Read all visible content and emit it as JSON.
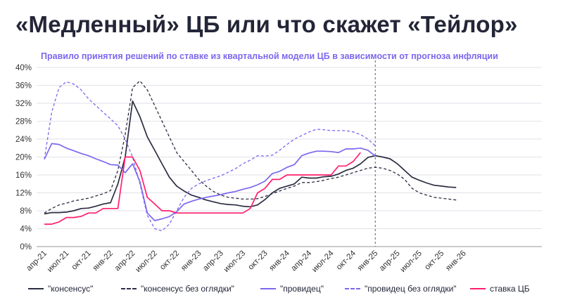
{
  "title": "«Медленный» ЦБ или что скажет «Тейлор»",
  "subtitle": "Правило принятия решений по ставке из квартальной модели ЦБ в зависимости от прогноза инфляции",
  "chart_data": {
    "type": "line",
    "x_categories": [
      "апр-21",
      "июл-21",
      "окт-21",
      "янв-22",
      "апр-22",
      "июл-22",
      "окт-22",
      "янв-23",
      "апр-23",
      "июл-23",
      "окт-23",
      "янв-24",
      "апр-24",
      "июл-24",
      "окт-24",
      "янв-25",
      "апр-25",
      "июл-25",
      "окт-25",
      "янв-26"
    ],
    "y_ticks": [
      "0%",
      "4%",
      "8%",
      "12%",
      "16%",
      "20%",
      "24%",
      "28%",
      "32%",
      "36%",
      "40%"
    ],
    "ylim": [
      0,
      40
    ],
    "grid": "horizontal",
    "legend_position": "bottom",
    "forecast_divider_month": 45,
    "series": [
      {
        "name": "\"консенсус\"",
        "color": "#2b2d42",
        "style": "solid",
        "points": [
          [
            0,
            7.3
          ],
          [
            1,
            7.6
          ],
          [
            2,
            7.6
          ],
          [
            3,
            7.7
          ],
          [
            4,
            8
          ],
          [
            5,
            8.5
          ],
          [
            6,
            8.6
          ],
          [
            7,
            9
          ],
          [
            8,
            9.5
          ],
          [
            9,
            9.8
          ],
          [
            10,
            14
          ],
          [
            11,
            20
          ],
          [
            12,
            32.5
          ],
          [
            13,
            29
          ],
          [
            14,
            24.5
          ],
          [
            15,
            21.5
          ],
          [
            16,
            18.5
          ],
          [
            17,
            15.5
          ],
          [
            18,
            13.5
          ],
          [
            19,
            12.4
          ],
          [
            20,
            11.5
          ],
          [
            21,
            11
          ],
          [
            22,
            10.4
          ],
          [
            23,
            10
          ],
          [
            24,
            9.6
          ],
          [
            25,
            9.4
          ],
          [
            26,
            9.3
          ],
          [
            27,
            9
          ],
          [
            28,
            8.9
          ],
          [
            29,
            9.3
          ],
          [
            30,
            10.5
          ],
          [
            31,
            12
          ],
          [
            32,
            13
          ],
          [
            33,
            13.5
          ],
          [
            34,
            14
          ],
          [
            35,
            15.5
          ],
          [
            36,
            15.3
          ],
          [
            37,
            15.3
          ],
          [
            38,
            15.6
          ],
          [
            39,
            15.7
          ],
          [
            40,
            16.2
          ],
          [
            41,
            17
          ],
          [
            42,
            17.5
          ],
          [
            43,
            18.5
          ],
          [
            44,
            19.9
          ],
          [
            45,
            20.3
          ],
          [
            46,
            20
          ],
          [
            47,
            19.6
          ],
          [
            48,
            18.5
          ],
          [
            49,
            17
          ],
          [
            50,
            15.5
          ],
          [
            51,
            14.8
          ],
          [
            52,
            14.2
          ],
          [
            53,
            13.7
          ],
          [
            54,
            13.5
          ],
          [
            55,
            13.3
          ],
          [
            56,
            13.2
          ]
        ]
      },
      {
        "name": "\"консенсус без оглядки\"",
        "color": "#2b2d42",
        "style": "dashed",
        "points": [
          [
            0,
            7.5
          ],
          [
            1,
            8.5
          ],
          [
            2,
            9.3
          ],
          [
            3,
            9.7
          ],
          [
            4,
            10.2
          ],
          [
            5,
            10.5
          ],
          [
            6,
            10.8
          ],
          [
            7,
            11.3
          ],
          [
            8,
            11.8
          ],
          [
            9,
            12.5
          ],
          [
            10,
            17
          ],
          [
            11,
            25
          ],
          [
            12,
            35.5
          ],
          [
            13,
            37
          ],
          [
            14,
            35
          ],
          [
            15,
            31.5
          ],
          [
            16,
            28
          ],
          [
            17,
            24.5
          ],
          [
            18,
            21
          ],
          [
            19,
            19
          ],
          [
            20,
            17
          ],
          [
            21,
            15
          ],
          [
            22,
            13.5
          ],
          [
            23,
            12.3
          ],
          [
            24,
            11.5
          ],
          [
            25,
            11
          ],
          [
            26,
            10.8
          ],
          [
            27,
            10.6
          ],
          [
            28,
            10.6
          ],
          [
            29,
            10.7
          ],
          [
            30,
            11.2
          ],
          [
            31,
            11.8
          ],
          [
            32,
            12.4
          ],
          [
            33,
            13
          ],
          [
            34,
            13.5
          ],
          [
            35,
            14.3
          ],
          [
            36,
            14.3
          ],
          [
            37,
            14.5
          ],
          [
            38,
            14.8
          ],
          [
            39,
            15.2
          ],
          [
            40,
            15.5
          ],
          [
            41,
            16
          ],
          [
            42,
            16.5
          ],
          [
            43,
            17
          ],
          [
            44,
            17.5
          ],
          [
            45,
            17.7
          ],
          [
            46,
            17.5
          ],
          [
            47,
            17
          ],
          [
            48,
            16.2
          ],
          [
            49,
            15
          ],
          [
            50,
            13
          ],
          [
            51,
            12
          ],
          [
            52,
            11.5
          ],
          [
            53,
            11
          ],
          [
            54,
            10.8
          ],
          [
            55,
            10.6
          ],
          [
            56,
            10.4
          ]
        ]
      },
      {
        "name": "\"провидец\"",
        "color": "#7b68ee",
        "style": "solid",
        "points": [
          [
            0,
            19.5
          ],
          [
            1,
            23
          ],
          [
            2,
            22.8
          ],
          [
            3,
            22
          ],
          [
            4,
            21.4
          ],
          [
            5,
            20.8
          ],
          [
            6,
            20.3
          ],
          [
            7,
            19.6
          ],
          [
            8,
            19
          ],
          [
            9,
            18.3
          ],
          [
            10,
            18.2
          ],
          [
            11,
            16.5
          ],
          [
            12,
            18.5
          ],
          [
            13,
            14.5
          ],
          [
            14,
            7.5
          ],
          [
            15,
            5.8
          ],
          [
            16,
            6.2
          ],
          [
            17,
            6.7
          ],
          [
            18,
            7.8
          ],
          [
            19,
            9.5
          ],
          [
            20,
            10.1
          ],
          [
            21,
            10.6
          ],
          [
            22,
            11
          ],
          [
            23,
            11.3
          ],
          [
            24,
            11.6
          ],
          [
            25,
            12
          ],
          [
            26,
            12.3
          ],
          [
            27,
            12.8
          ],
          [
            28,
            13.2
          ],
          [
            29,
            13.8
          ],
          [
            30,
            14.6
          ],
          [
            31,
            16.3
          ],
          [
            32,
            16.8
          ],
          [
            33,
            17.7
          ],
          [
            34,
            18.3
          ],
          [
            35,
            20.3
          ],
          [
            36,
            20.9
          ],
          [
            37,
            21.3
          ],
          [
            38,
            21.3
          ],
          [
            39,
            21.2
          ],
          [
            40,
            21
          ],
          [
            41,
            21.8
          ],
          [
            42,
            21.8
          ],
          [
            43,
            22
          ],
          [
            44,
            21.5
          ],
          [
            45,
            20.2
          ]
        ]
      },
      {
        "name": "\"провидец без оглядки\"",
        "color": "#7b68ee",
        "style": "dashed",
        "points": [
          [
            0,
            19.5
          ],
          [
            1,
            30
          ],
          [
            2,
            35.5
          ],
          [
            3,
            36.8
          ],
          [
            4,
            36.3
          ],
          [
            5,
            35
          ],
          [
            6,
            33
          ],
          [
            7,
            31.5
          ],
          [
            8,
            30
          ],
          [
            9,
            28.5
          ],
          [
            10,
            27
          ],
          [
            11,
            24
          ],
          [
            12,
            20
          ],
          [
            13,
            14
          ],
          [
            14,
            7
          ],
          [
            15,
            4
          ],
          [
            16,
            3.5
          ],
          [
            17,
            5
          ],
          [
            18,
            8
          ],
          [
            19,
            11
          ],
          [
            20,
            13
          ],
          [
            21,
            14
          ],
          [
            22,
            14.7
          ],
          [
            23,
            15.3
          ],
          [
            24,
            15.8
          ],
          [
            25,
            16.6
          ],
          [
            26,
            17.4
          ],
          [
            27,
            18.5
          ],
          [
            28,
            19.3
          ],
          [
            29,
            20.3
          ],
          [
            30,
            20.2
          ],
          [
            31,
            20.4
          ],
          [
            32,
            21.5
          ],
          [
            33,
            22.8
          ],
          [
            34,
            24
          ],
          [
            35,
            24.8
          ],
          [
            36,
            25.6
          ],
          [
            37,
            26.2
          ],
          [
            38,
            26.1
          ],
          [
            39,
            25.9
          ],
          [
            40,
            25.9
          ],
          [
            41,
            25.9
          ],
          [
            42,
            25.6
          ],
          [
            43,
            25
          ],
          [
            44,
            24
          ],
          [
            45,
            22.5
          ]
        ]
      },
      {
        "name": "ставка ЦБ",
        "color": "#ff1f6e",
        "style": "solid",
        "points": [
          [
            0,
            5
          ],
          [
            1,
            5
          ],
          [
            2,
            5.5
          ],
          [
            3,
            6.5
          ],
          [
            4,
            6.5
          ],
          [
            5,
            6.75
          ],
          [
            6,
            7.5
          ],
          [
            7,
            7.5
          ],
          [
            8,
            8.5
          ],
          [
            9,
            8.5
          ],
          [
            10,
            8.5
          ],
          [
            11,
            20
          ],
          [
            12,
            20
          ],
          [
            13,
            17
          ],
          [
            14,
            11
          ],
          [
            15,
            9.5
          ],
          [
            16,
            8
          ],
          [
            17,
            8
          ],
          [
            18,
            7.5
          ],
          [
            19,
            7.5
          ],
          [
            20,
            7.5
          ],
          [
            21,
            7.5
          ],
          [
            22,
            7.5
          ],
          [
            23,
            7.5
          ],
          [
            24,
            7.5
          ],
          [
            25,
            7.5
          ],
          [
            26,
            7.5
          ],
          [
            27,
            7.5
          ],
          [
            28,
            8.5
          ],
          [
            29,
            12
          ],
          [
            30,
            13
          ],
          [
            31,
            15
          ],
          [
            32,
            15
          ],
          [
            33,
            16
          ],
          [
            34,
            16
          ],
          [
            35,
            16
          ],
          [
            36,
            16
          ],
          [
            37,
            16
          ],
          [
            38,
            16
          ],
          [
            39,
            16
          ],
          [
            40,
            18
          ],
          [
            41,
            18
          ],
          [
            42,
            19
          ],
          [
            43,
            21
          ]
        ]
      }
    ]
  }
}
